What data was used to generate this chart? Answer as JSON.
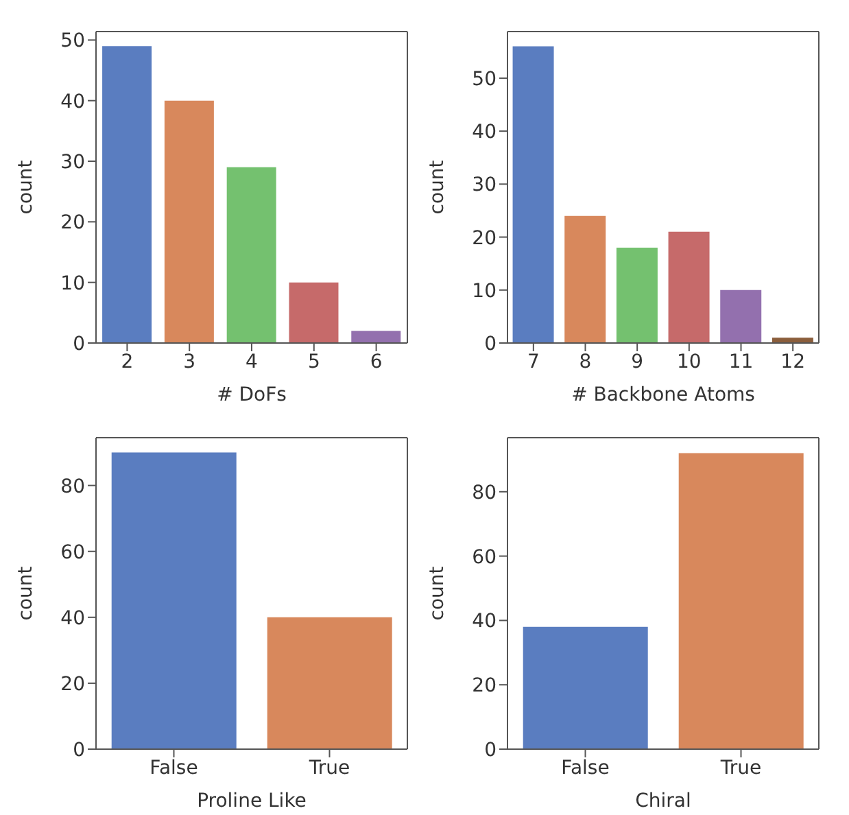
{
  "chart_data": [
    {
      "type": "bar",
      "xlabel": "# DoFs",
      "ylabel": "count",
      "categories": [
        "2",
        "3",
        "4",
        "5",
        "6"
      ],
      "values": [
        49,
        40,
        29,
        10,
        2
      ],
      "colors": [
        "#5a7dc0",
        "#d8885c",
        "#74c16f",
        "#c66a6a",
        "#9370ae"
      ],
      "ylim": [
        0,
        51.4
      ],
      "yticks": [
        0,
        10,
        20,
        30,
        40,
        50
      ],
      "grid": false
    },
    {
      "type": "bar",
      "xlabel": "# Backbone Atoms",
      "ylabel": "count",
      "categories": [
        "7",
        "8",
        "9",
        "10",
        "11",
        "12"
      ],
      "values": [
        56,
        24,
        18,
        21,
        10,
        1
      ],
      "colors": [
        "#5a7dc0",
        "#d8885c",
        "#74c16f",
        "#c66a6a",
        "#9370ae",
        "#8b5e3c"
      ],
      "ylim": [
        0,
        58.8
      ],
      "yticks": [
        0,
        10,
        20,
        30,
        40,
        50
      ],
      "grid": false
    },
    {
      "type": "bar",
      "xlabel": "Proline Like",
      "ylabel": "count",
      "categories": [
        "False",
        "True"
      ],
      "values": [
        90,
        40
      ],
      "colors": [
        "#5a7dc0",
        "#d8885c"
      ],
      "ylim": [
        0,
        94.5
      ],
      "yticks": [
        0,
        20,
        40,
        60,
        80
      ],
      "grid": false
    },
    {
      "type": "bar",
      "xlabel": "Chiral",
      "ylabel": "count",
      "categories": [
        "False",
        "True"
      ],
      "values": [
        38,
        92
      ],
      "colors": [
        "#5a7dc0",
        "#d8885c"
      ],
      "ylim": [
        0,
        96.8
      ],
      "yticks": [
        0,
        20,
        40,
        60,
        80
      ],
      "grid": false
    }
  ]
}
